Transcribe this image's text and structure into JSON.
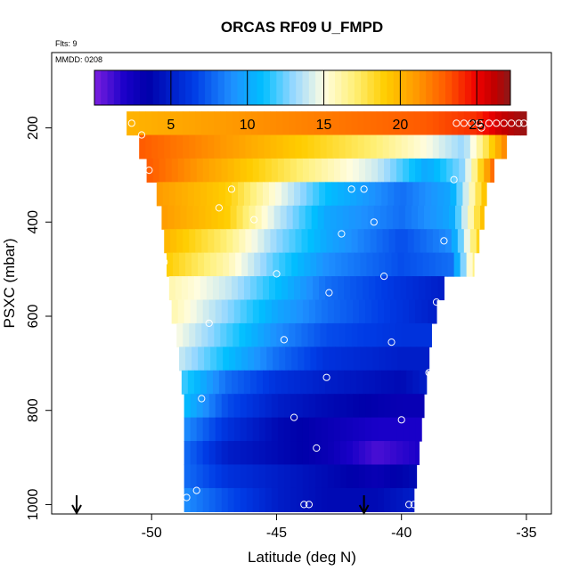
{
  "chart_data": {
    "type": "heatmap",
    "title": "ORCAS RF09 U_FMPD",
    "flights_note": "Flts: 9",
    "date_note": "MMDD: 0208",
    "xlabel": "Latitude (deg N)",
    "ylabel": "PSXC (mbar)",
    "xlim": [
      -54,
      -34
    ],
    "ylim": [
      1020,
      40
    ],
    "y_reversed": true,
    "xticks": [
      -50,
      -45,
      -40,
      -35
    ],
    "xtick_labels": [
      "-50",
      "-45",
      "-40",
      "-35"
    ],
    "yticks": [
      200,
      400,
      600,
      800,
      1000
    ],
    "ytick_labels": [
      "200",
      "400",
      "600",
      "800",
      "1000"
    ],
    "colorbar": {
      "range": [
        0,
        27.2
      ],
      "ticks": [
        5,
        10,
        15,
        20,
        25
      ],
      "tick_labels": [
        "5",
        "10",
        "15",
        "20",
        "25"
      ]
    },
    "colors": {
      "low": "#7b1fe0",
      "mid_blue": "#1e90ff",
      "mid": "#fffbe0",
      "high_orange": "#ff9a00",
      "high": "#8b1a1a"
    },
    "pressure_levels": [
      190,
      240,
      290,
      340,
      390,
      440,
      490,
      540,
      590,
      640,
      690,
      740,
      790,
      840,
      890,
      940,
      990
    ],
    "level_lat_ranges": [
      [
        -51.0,
        -35.0
      ],
      [
        -50.5,
        -35.8
      ],
      [
        -50.2,
        -36.3
      ],
      [
        -49.8,
        -36.6
      ],
      [
        -49.6,
        -36.7
      ],
      [
        -49.5,
        -36.9
      ],
      [
        -49.4,
        -37.1
      ],
      [
        -49.3,
        -38.3
      ],
      [
        -49.2,
        -38.6
      ],
      [
        -49.0,
        -38.8
      ],
      [
        -48.9,
        -38.9
      ],
      [
        -48.8,
        -39.0
      ],
      [
        -48.7,
        -39.1
      ],
      [
        -48.7,
        -39.2
      ],
      [
        -48.7,
        -39.3
      ],
      [
        -48.7,
        -39.4
      ],
      [
        -48.7,
        -39.5
      ]
    ],
    "level_profiles": [
      {
        "lat": [
          -51.0,
          -47,
          -43,
          -39,
          -37,
          -36,
          -35
        ],
        "u": [
          20,
          21,
          22,
          23,
          24,
          26,
          27
        ]
      },
      {
        "lat": [
          -50.5,
          -47,
          -44,
          -41,
          -39,
          -37.5,
          -35.8
        ],
        "u": [
          23,
          21,
          19,
          17,
          15,
          13,
          22
        ]
      },
      {
        "lat": [
          -50.2,
          -47,
          -44,
          -41,
          -39,
          -37.5,
          -36.3
        ],
        "u": [
          23,
          20,
          17,
          14,
          10,
          13,
          23
        ]
      },
      {
        "lat": [
          -49.8,
          -47,
          -45,
          -43,
          -40,
          -38,
          -36.6
        ],
        "u": [
          21,
          19,
          15,
          11,
          8,
          10,
          20
        ]
      },
      {
        "lat": [
          -49.6,
          -47,
          -45,
          -43,
          -40,
          -38,
          -36.7
        ],
        "u": [
          21,
          19,
          14,
          10,
          8,
          10,
          20
        ]
      },
      {
        "lat": [
          -49.5,
          -47,
          -45,
          -43,
          -40,
          -38,
          -36.9
        ],
        "u": [
          20,
          17,
          13,
          10,
          7,
          9,
          19
        ]
      },
      {
        "lat": [
          -49.4,
          -47,
          -45,
          -43,
          -40,
          -38,
          -37.1
        ],
        "u": [
          19,
          16,
          12,
          9,
          7,
          8,
          17
        ]
      },
      {
        "lat": [
          -49.3,
          -47,
          -45,
          -43,
          -40,
          -38.3
        ],
        "u": [
          16,
          14,
          11,
          8,
          6,
          5
        ]
      },
      {
        "lat": [
          -49.2,
          -47,
          -45,
          -43,
          -40,
          -38.6
        ],
        "u": [
          16,
          13,
          10,
          8,
          6,
          5
        ]
      },
      {
        "lat": [
          -49.0,
          -47,
          -45,
          -43,
          -40,
          -38.8
        ],
        "u": [
          15,
          12,
          9,
          7,
          6,
          6
        ]
      },
      {
        "lat": [
          -48.9,
          -47,
          -45,
          -43,
          -40,
          -38.9
        ],
        "u": [
          14,
          11,
          8,
          6,
          5,
          5
        ]
      },
      {
        "lat": [
          -48.8,
          -47,
          -45,
          -43,
          -40,
          -39.0
        ],
        "u": [
          12,
          8,
          6,
          5,
          4,
          5
        ]
      },
      {
        "lat": [
          -48.7,
          -47,
          -45,
          -43,
          -40,
          -39.1
        ],
        "u": [
          11,
          7,
          5,
          4,
          3,
          3
        ]
      },
      {
        "lat": [
          -48.7,
          -47,
          -45,
          -43,
          -41,
          -39.2
        ],
        "u": [
          9,
          6,
          4,
          3,
          2,
          2
        ]
      },
      {
        "lat": [
          -48.7,
          -47,
          -45,
          -43,
          -41,
          -39.3
        ],
        "u": [
          8,
          5,
          4,
          3,
          1,
          2
        ]
      },
      {
        "lat": [
          -48.7,
          -47,
          -45,
          -43,
          -41,
          -39.4
        ],
        "u": [
          8,
          6,
          5,
          4,
          3,
          4
        ]
      },
      {
        "lat": [
          -48.7,
          -47,
          -45,
          -43,
          -41,
          -39.5
        ],
        "u": [
          9,
          7,
          5,
          4,
          4,
          5
        ]
      }
    ],
    "sample_points": [
      {
        "lat": -50.8,
        "p": 190
      },
      {
        "lat": -50.4,
        "p": 215
      },
      {
        "lat": -50.1,
        "p": 290
      },
      {
        "lat": -49.8,
        "p": 375
      },
      {
        "lat": -49.5,
        "p": 485
      },
      {
        "lat": -48.9,
        "p": 780
      },
      {
        "lat": -48.6,
        "p": 985
      },
      {
        "lat": -48.2,
        "p": 970
      },
      {
        "lat": -48.0,
        "p": 775
      },
      {
        "lat": -47.7,
        "p": 615
      },
      {
        "lat": -47.3,
        "p": 370
      },
      {
        "lat": -46.8,
        "p": 330
      },
      {
        "lat": -45.9,
        "p": 395
      },
      {
        "lat": -45.0,
        "p": 510
      },
      {
        "lat": -44.7,
        "p": 650
      },
      {
        "lat": -44.3,
        "p": 815
      },
      {
        "lat": -43.9,
        "p": 1000
      },
      {
        "lat": -43.7,
        "p": 1000
      },
      {
        "lat": -43.4,
        "p": 880
      },
      {
        "lat": -43.0,
        "p": 730
      },
      {
        "lat": -42.9,
        "p": 550
      },
      {
        "lat": -42.4,
        "p": 425
      },
      {
        "lat": -42.0,
        "p": 330
      },
      {
        "lat": -41.5,
        "p": 330
      },
      {
        "lat": -41.1,
        "p": 400
      },
      {
        "lat": -40.7,
        "p": 515
      },
      {
        "lat": -40.4,
        "p": 655
      },
      {
        "lat": -40.0,
        "p": 820
      },
      {
        "lat": -39.7,
        "p": 1000
      },
      {
        "lat": -39.5,
        "p": 1000
      },
      {
        "lat": -39.1,
        "p": 905
      },
      {
        "lat": -38.9,
        "p": 720
      },
      {
        "lat": -38.6,
        "p": 570
      },
      {
        "lat": -38.3,
        "p": 440
      },
      {
        "lat": -37.9,
        "p": 310
      },
      {
        "lat": -37.8,
        "p": 190
      },
      {
        "lat": -37.5,
        "p": 190
      },
      {
        "lat": -37.2,
        "p": 190
      },
      {
        "lat": -36.9,
        "p": 190
      },
      {
        "lat": -36.5,
        "p": 190
      },
      {
        "lat": -36.2,
        "p": 190
      },
      {
        "lat": -35.9,
        "p": 190
      },
      {
        "lat": -35.6,
        "p": 190
      },
      {
        "lat": -35.3,
        "p": 190
      },
      {
        "lat": -35.1,
        "p": 190
      },
      {
        "lat": -36.8,
        "p": 200
      }
    ],
    "arrow_markers_lat": [
      -53.0,
      -41.5
    ]
  }
}
